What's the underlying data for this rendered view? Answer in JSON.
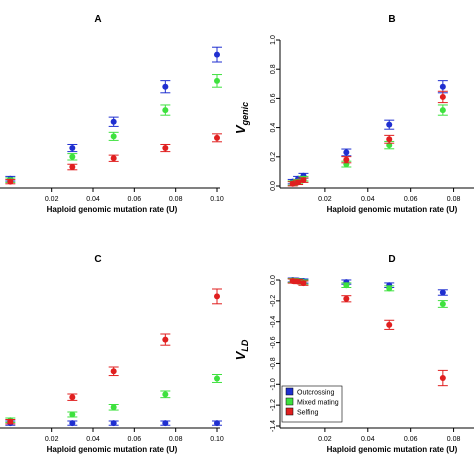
{
  "colors": {
    "Outcrossing": "#1f2fd0",
    "Mixed mating": "#3ee13e",
    "Selfing": "#e01f1f"
  },
  "legend": [
    "Outcrossing",
    "Mixed mating",
    "Selfing"
  ],
  "chart_data": [
    {
      "id": "A",
      "type": "scatter",
      "title": "A",
      "xlabel": "Haploid genomic mutation rate (U)",
      "ylabel": "",
      "xlim": [
        0.0,
        0.1
      ],
      "xticks": [
        "0.02",
        "0.04",
        "0.06",
        "0.08",
        "0.10"
      ],
      "ylim": [
        0,
        1
      ],
      "yticks": [],
      "x": [
        0.0,
        0.03,
        0.05,
        0.075,
        0.1
      ],
      "series": [
        {
          "name": "Outcrossing",
          "values": [
            0.05,
            0.26,
            0.44,
            0.68,
            0.9
          ]
        },
        {
          "name": "Mixed mating",
          "values": [
            0.04,
            0.2,
            0.34,
            0.52,
            0.72
          ]
        },
        {
          "name": "Selfing",
          "values": [
            0.03,
            0.13,
            0.19,
            0.26,
            0.33
          ]
        }
      ]
    },
    {
      "id": "B",
      "type": "scatter",
      "title": "B",
      "xlabel": "Haploid genomic mutation rate (U)",
      "ylabel": "V",
      "ylabel_sub": "genic",
      "xlim": [
        0.0,
        0.08
      ],
      "xticks": [
        "0.02",
        "0.04",
        "0.06",
        "0.08"
      ],
      "ylim": [
        0,
        1
      ],
      "yticks": [
        "0.0",
        "0.2",
        "0.4",
        "0.6",
        "0.8",
        "1.0"
      ],
      "x": [
        0.005,
        0.0075,
        0.01,
        0.03,
        0.05,
        0.075
      ],
      "series": [
        {
          "name": "Outcrossing",
          "values": [
            0.03,
            0.05,
            0.07,
            0.23,
            0.42,
            0.68
          ]
        },
        {
          "name": "Mixed mating",
          "values": [
            0.02,
            0.03,
            0.05,
            0.15,
            0.28,
            0.52
          ]
        },
        {
          "name": "Selfing",
          "values": [
            0.015,
            0.025,
            0.04,
            0.18,
            0.32,
            0.61
          ]
        }
      ]
    },
    {
      "id": "C",
      "type": "scatter",
      "title": "C",
      "xlabel": "Haploid genomic mutation rate (U)",
      "ylabel": "",
      "xlim": [
        0.0,
        0.1
      ],
      "xticks": [
        "0.02",
        "0.04",
        "0.06",
        "0.08",
        "0.10"
      ],
      "ylim": [
        0,
        1
      ],
      "yticks": [],
      "x": [
        0.0,
        0.03,
        0.05,
        0.075,
        0.1
      ],
      "series": [
        {
          "name": "Outcrossing",
          "values": [
            0.02,
            0.02,
            0.02,
            0.02,
            0.02
          ]
        },
        {
          "name": "Mixed mating",
          "values": [
            0.04,
            0.08,
            0.13,
            0.22,
            0.33
          ]
        },
        {
          "name": "Selfing",
          "values": [
            0.03,
            0.2,
            0.38,
            0.6,
            0.9
          ]
        }
      ]
    },
    {
      "id": "D",
      "type": "scatter",
      "title": "D",
      "xlabel": "Haploid genomic mutation rate (U)",
      "ylabel": "V",
      "ylabel_sub": "LD",
      "xlim": [
        0.0,
        0.08
      ],
      "xticks": [
        "0.02",
        "0.04",
        "0.06",
        "0.08"
      ],
      "ylim": [
        -1.4,
        0.0
      ],
      "yticks": [
        "0.0",
        "-0.2",
        "-0.4",
        "-0.6",
        "-0.8",
        "-1.0",
        "-1.2",
        "-1.4"
      ],
      "x": [
        0.005,
        0.0075,
        0.01,
        0.03,
        0.05,
        0.075
      ],
      "series": [
        {
          "name": "Outcrossing",
          "values": [
            0.0,
            -0.005,
            -0.01,
            -0.02,
            -0.05,
            -0.12
          ]
        },
        {
          "name": "Mixed mating",
          "values": [
            -0.005,
            -0.01,
            -0.02,
            -0.05,
            -0.08,
            -0.23
          ]
        },
        {
          "name": "Selfing",
          "values": [
            -0.01,
            -0.015,
            -0.03,
            -0.18,
            -0.43,
            -0.94
          ]
        }
      ]
    }
  ]
}
